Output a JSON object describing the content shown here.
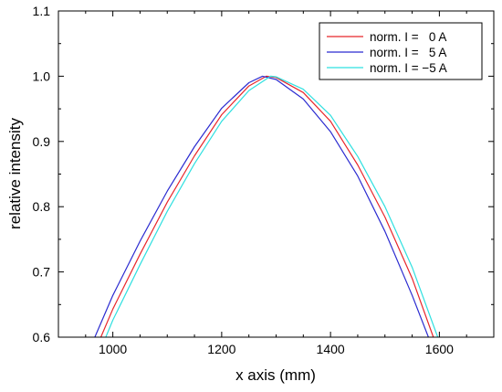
{
  "chart_data": {
    "type": "line",
    "xlabel": "x axis (mm)",
    "ylabel": "relative intensity",
    "xlim": [
      900,
      1700
    ],
    "ylim": [
      0.6,
      1.1
    ],
    "xticks": [
      1000,
      1200,
      1400,
      1600
    ],
    "yticks": [
      0.6,
      0.7,
      0.8,
      0.9,
      1.0,
      1.1
    ],
    "xtick_labels": [
      "1000",
      "1200",
      "1400",
      "1600"
    ],
    "ytick_labels": [
      "0.6",
      "0.7",
      "0.8",
      "0.9",
      "1.0",
      "1.1"
    ],
    "grid": false,
    "legend_position": "top-right",
    "series": [
      {
        "name": "norm. I =   0 A",
        "color": "#e8262a",
        "x": [
          978,
          1000,
          1050,
          1100,
          1150,
          1200,
          1250,
          1282,
          1300,
          1350,
          1400,
          1450,
          1500,
          1550,
          1589
        ],
        "y": [
          0.6,
          0.643,
          0.727,
          0.807,
          0.878,
          0.941,
          0.985,
          1.0,
          0.998,
          0.975,
          0.931,
          0.864,
          0.784,
          0.69,
          0.6
        ]
      },
      {
        "name": "norm. I =   5 A",
        "color": "#2b2bd0",
        "x": [
          967,
          1000,
          1050,
          1100,
          1150,
          1200,
          1250,
          1275,
          1300,
          1350,
          1400,
          1450,
          1500,
          1550,
          1580
        ],
        "y": [
          0.6,
          0.664,
          0.747,
          0.824,
          0.892,
          0.951,
          0.99,
          1.0,
          0.995,
          0.965,
          0.915,
          0.847,
          0.762,
          0.664,
          0.6
        ]
      },
      {
        "name": "norm. I = −5 A",
        "color": "#2fe0e0",
        "x": [
          987,
          1000,
          1050,
          1100,
          1150,
          1200,
          1250,
          1290,
          1300,
          1350,
          1400,
          1450,
          1500,
          1550,
          1597
        ],
        "y": [
          0.6,
          0.626,
          0.711,
          0.793,
          0.866,
          0.931,
          0.978,
          1.0,
          0.999,
          0.98,
          0.94,
          0.877,
          0.8,
          0.707,
          0.6
        ]
      }
    ]
  }
}
